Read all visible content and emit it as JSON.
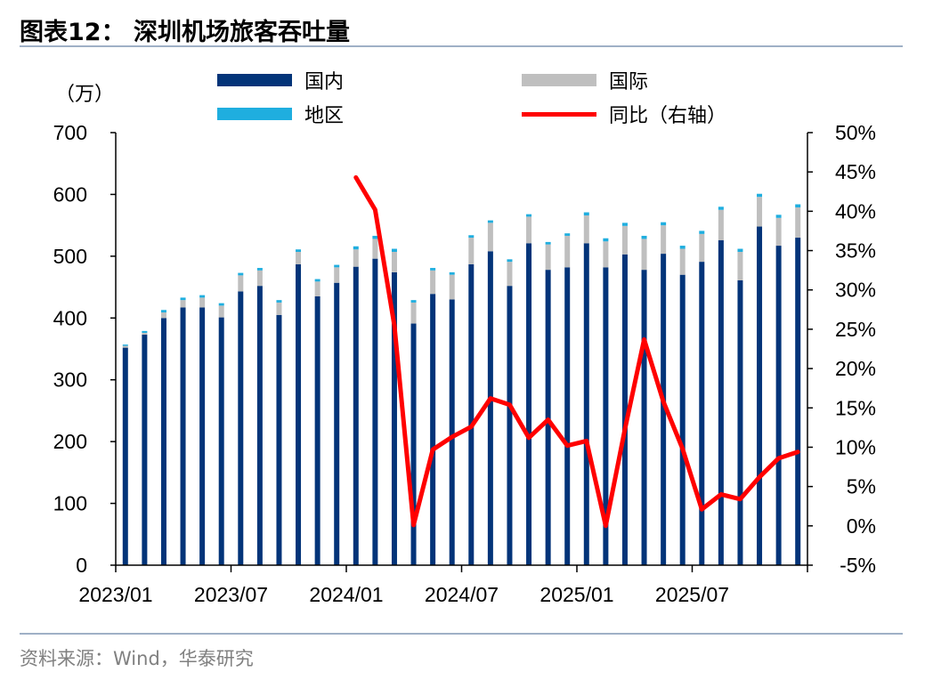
{
  "title": "图表12：  深圳机场旅客吞吐量",
  "source": "资料来源：Wind，华泰研究",
  "colors": {
    "domestic": "#033479",
    "international": "#bfbfbf",
    "regional": "#1faedf",
    "yoy": "#ff0000",
    "axis": "#000000"
  },
  "chart_data": {
    "type": "bar",
    "stacked": true,
    "unit_label": "（万）",
    "x": [
      "2023/01",
      "2023/02",
      "2023/03",
      "2023/04",
      "2023/05",
      "2023/06",
      "2023/07",
      "2023/08",
      "2023/09",
      "2023/10",
      "2023/11",
      "2023/12",
      "2024/01",
      "2024/02",
      "2024/03",
      "2024/04",
      "2024/05",
      "2024/06",
      "2024/07",
      "2024/08",
      "2024/09",
      "2024/10",
      "2024/11",
      "2024/12",
      "2025/01",
      "2025/02",
      "2025/03",
      "2025/04",
      "2025/05",
      "2025/06",
      "2025/07",
      "2025/08",
      "2025/09",
      "2025/10",
      "2025/11",
      "2025/12"
    ],
    "x_tick_labels": [
      "2023/01",
      "2023/07",
      "2024/01",
      "2024/07",
      "2025/01",
      "2025/07"
    ],
    "y_left": {
      "min": 0,
      "max": 700,
      "step": 100,
      "ticks": [
        "0",
        "100",
        "200",
        "300",
        "400",
        "500",
        "600",
        "700"
      ]
    },
    "y_right": {
      "min": -5,
      "max": 50,
      "step": 5,
      "ticks": [
        "-5%",
        "0%",
        "5%",
        "10%",
        "15%",
        "20%",
        "25%",
        "30%",
        "35%",
        "40%",
        "45%",
        "50%"
      ]
    },
    "series": [
      {
        "name": "国内",
        "axis": "left",
        "kind": "bar",
        "values": [
          352,
          373,
          400,
          417,
          417,
          401,
          443,
          452,
          405,
          487,
          435,
          457,
          483,
          496,
          474,
          391,
          439,
          430,
          487,
          508,
          452,
          521,
          478,
          482,
          521,
          482,
          503,
          478,
          504,
          470,
          491,
          526,
          461,
          548,
          517,
          530
        ]
      },
      {
        "name": "国际",
        "axis": "left",
        "kind": "bar",
        "values": [
          3,
          3,
          9,
          12,
          16,
          19,
          26,
          25,
          20,
          20,
          24,
          25,
          28,
          32,
          33,
          34,
          38,
          40,
          43,
          46,
          39,
          43,
          41,
          51,
          45,
          42,
          46,
          50,
          46,
          42,
          45,
          49,
          46,
          48,
          45,
          49
        ]
      },
      {
        "name": "地区",
        "axis": "left",
        "kind": "bar",
        "values": [
          2,
          3,
          4,
          4,
          4,
          4,
          4,
          4,
          4,
          4,
          4,
          4,
          5,
          5,
          5,
          4,
          4,
          4,
          4,
          4,
          4,
          4,
          4,
          4,
          5,
          5,
          5,
          5,
          5,
          5,
          5,
          5,
          5,
          5,
          5,
          5
        ]
      },
      {
        "name": "同比（右轴）",
        "axis": "right",
        "kind": "line",
        "values": [
          null,
          null,
          null,
          null,
          null,
          null,
          null,
          null,
          null,
          null,
          null,
          null,
          44.3,
          40.2,
          25.5,
          0.1,
          9.7,
          11.3,
          12.6,
          16.2,
          15.4,
          11.2,
          13.5,
          10.2,
          10.8,
          0.0,
          12.3,
          23.7,
          15.8,
          9.8,
          2.1,
          4.0,
          3.4,
          6.2,
          8.6,
          9.4
        ]
      }
    ]
  }
}
